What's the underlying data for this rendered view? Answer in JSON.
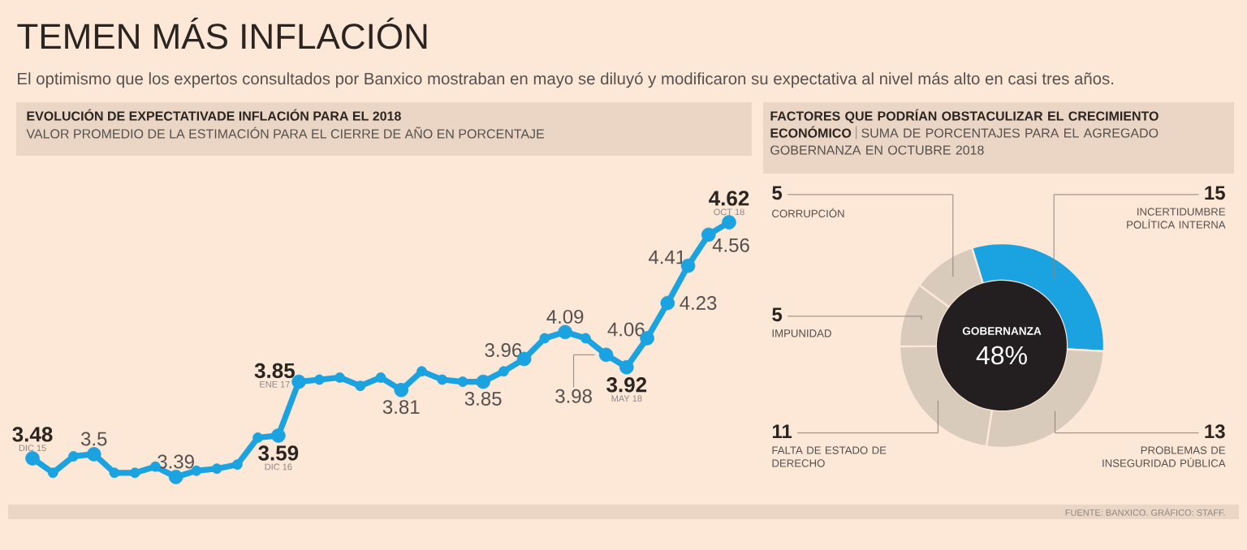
{
  "chart_data": [
    {
      "type": "line",
      "title": "EVOLUCIÓN DE EXPECTATIVADE INFLACIÓN PARA EL 2018",
      "subtitle": "VALOR PROMEDIO DE LA ESTIMACIÓN PARA EL CIERRE DE AÑO EN PORCENTAJE",
      "annotations": [
        "TEMEN MÁS INFLACIÓN",
        "El optimismo que los expertos consultados por Banxico mostraban en mayo se diluyó y modificaron su expectativa al nivel más alto en casi tres años.",
        "DIC 15",
        "DIC 16",
        "ENE 17",
        "MAY 18",
        "OCT 18"
      ],
      "categories": [
        null,
        null,
        null,
        null,
        null,
        null,
        null,
        null,
        null,
        null,
        null,
        null,
        null,
        null,
        null,
        null,
        null,
        null,
        null,
        null,
        null,
        null,
        null,
        null,
        null,
        null,
        null,
        null,
        null,
        null,
        null,
        null,
        null,
        null,
        null
      ],
      "series": [
        {
          "color": "#1aa3e0",
          "values": [
            3.48,
            3.41,
            3.49,
            3.5,
            3.41,
            3.41,
            3.44,
            3.39,
            3.42,
            3.43,
            3.45,
            3.58,
            3.59,
            3.85,
            3.86,
            3.87,
            3.83,
            3.87,
            3.81,
            3.9,
            3.86,
            3.85,
            3.85,
            3.9,
            3.96,
            4.06,
            4.09,
            4.06,
            3.98,
            3.92,
            4.06,
            4.23,
            4.41,
            4.56,
            4.62
          ],
          "value_labels": [
            "3.48",
            null,
            null,
            "3.5",
            null,
            null,
            null,
            "3.39",
            null,
            null,
            null,
            null,
            "3.59",
            "3.85",
            null,
            null,
            null,
            null,
            "3.81",
            null,
            null,
            null,
            "3.85",
            null,
            "3.96",
            null,
            "4.09",
            null,
            "3.98",
            "3.92",
            "4.06",
            "4.23",
            "4.41",
            "4.56",
            "4.62"
          ]
        }
      ],
      "marker": "circle"
    },
    {
      "type": "donut",
      "title": "FACTORES QUE PODRÍAN OBSTACULIZAR EL CRECIMIENTO ECONÓMICO",
      "subtitle": "SUMA DE PORCENTAJES PARA EL AGREGADO GOBERNANZA EN OCTUBRE 2018",
      "categories": [
        "INCERTIDUMBRE POLÍTICA INTERNA",
        "PROBLEMAS DE INSEGURIDAD PÚBLICA",
        "FALTA DE ESTADO DE DERECHO",
        "IMPUNIDAD",
        "CORRUPCIÓN"
      ],
      "values": [
        15,
        13,
        11,
        5,
        5
      ],
      "colors": [
        "#1aa3e0",
        "#d8cbbc",
        "#d8cbbc",
        "#d8cbbc",
        "#d8cbbc"
      ],
      "data_labels": true,
      "annotations": [
        "GOBERNANZA",
        "48%",
        "FUENTE: BANXICO. GRÁFICO: STAFF."
      ]
    }
  ]
}
